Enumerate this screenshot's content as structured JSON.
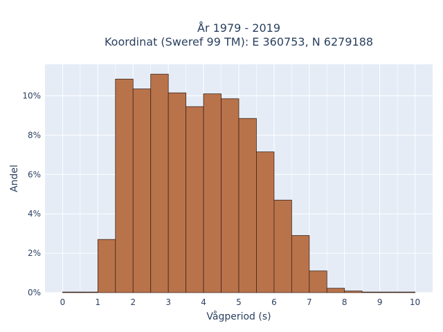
{
  "title_line1": "År 1979 - 2019",
  "title_line2": "Koordinat (Sweref 99 TM): E 360753, N 6279188",
  "chart_data": {
    "type": "bar",
    "xlabel": "Vågperiod (s)",
    "ylabel": "Andel",
    "xlim": [
      -0.5,
      10.5
    ],
    "ylim": [
      0,
      11.6
    ],
    "x_ticks": [
      "0",
      "1",
      "2",
      "3",
      "4",
      "5",
      "6",
      "7",
      "8",
      "9",
      "10"
    ],
    "y_ticks": [
      "0%",
      "2%",
      "4%",
      "6%",
      "8%",
      "10%"
    ],
    "bin_width": 0.5,
    "bins": [
      {
        "start": 0.0,
        "value": 0.02
      },
      {
        "start": 0.5,
        "value": 0.0
      },
      {
        "start": 1.0,
        "value": 2.7
      },
      {
        "start": 1.5,
        "value": 10.85
      },
      {
        "start": 2.0,
        "value": 10.35
      },
      {
        "start": 2.5,
        "value": 11.1
      },
      {
        "start": 3.0,
        "value": 10.15
      },
      {
        "start": 3.5,
        "value": 9.45
      },
      {
        "start": 4.0,
        "value": 10.1
      },
      {
        "start": 4.5,
        "value": 9.85
      },
      {
        "start": 5.0,
        "value": 8.85
      },
      {
        "start": 5.5,
        "value": 7.15
      },
      {
        "start": 6.0,
        "value": 4.7
      },
      {
        "start": 6.5,
        "value": 2.9
      },
      {
        "start": 7.0,
        "value": 1.1
      },
      {
        "start": 7.5,
        "value": 0.22
      },
      {
        "start": 8.0,
        "value": 0.08
      },
      {
        "start": 8.5,
        "value": 0.02
      },
      {
        "start": 9.0,
        "value": 0.01
      },
      {
        "start": 9.5,
        "value": 0.0
      }
    ],
    "bar_color": "#b9734b",
    "bar_edge_color": "#3d2418",
    "plot_bg": "#e5ecf6",
    "grid_color": "#ffffff",
    "grid": true
  }
}
